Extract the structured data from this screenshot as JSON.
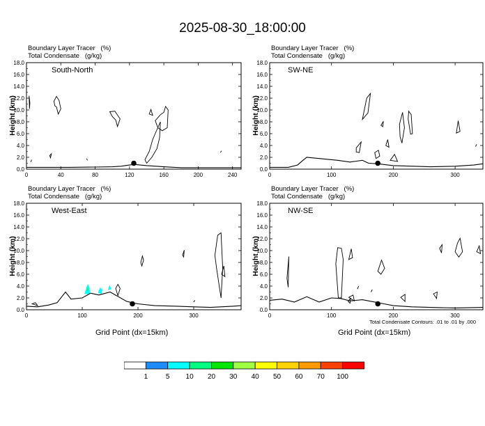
{
  "title": "2025-08-30_18:00:00",
  "panel_header": {
    "line1": "Boundary Layer Tracer   (%)",
    "line2": "Total Condensate   (g/kg)"
  },
  "xlabel": "Grid Point (dx=15km)",
  "ylabel": "Height (km)",
  "footnote": "Total Condensate Contours: .01 to .01 by .000",
  "colorbar": {
    "labels": [
      "1",
      "5",
      "10",
      "20",
      "30",
      "40",
      "50",
      "60",
      "70",
      "100"
    ],
    "colors": [
      "#ffffff",
      "#1e8cff",
      "#00ffff",
      "#00ff80",
      "#00e600",
      "#a0ff40",
      "#ffff00",
      "#ffd200",
      "#ff9b00",
      "#ff4000",
      "#ff0000"
    ]
  },
  "chart_data": [
    {
      "type": "contour",
      "name": "South-North",
      "xlim": [
        0,
        250
      ],
      "xticks": [
        0,
        40,
        80,
        120,
        160,
        200,
        240
      ],
      "ylim": [
        0,
        18
      ],
      "yticks": [
        "0.0",
        "2.0",
        "4.0",
        "6.0",
        "8.0",
        "10.0",
        "12.0",
        "14.0",
        "16.0",
        "18.0"
      ],
      "terrain": [
        [
          0,
          0.3
        ],
        [
          20,
          0.3
        ],
        [
          50,
          0.3
        ],
        [
          80,
          0.35
        ],
        [
          100,
          0.4
        ],
        [
          110,
          0.5
        ],
        [
          125,
          0.8
        ],
        [
          140,
          0.6
        ],
        [
          160,
          0.4
        ],
        [
          180,
          0.25
        ],
        [
          250,
          0.25
        ]
      ],
      "marker": [
        125,
        1.0
      ],
      "contours": [
        [
          [
            3,
            12.4
          ],
          [
            4,
            11.2
          ],
          [
            3.5,
            10.2
          ]
        ],
        [
          [
            32,
            11.5
          ],
          [
            35,
            12.3
          ],
          [
            38,
            11.6
          ],
          [
            40,
            10.2
          ],
          [
            37,
            9.3
          ],
          [
            35,
            10.5
          ],
          [
            33,
            10.7
          ]
        ],
        [
          [
            97,
            9.7
          ],
          [
            103,
            9.8
          ],
          [
            109,
            8.5
          ],
          [
            106,
            7.2
          ],
          [
            104,
            8.3
          ],
          [
            100,
            8.9
          ]
        ],
        [
          [
            140,
            1.0
          ],
          [
            146,
            2.0
          ],
          [
            152,
            3.5
          ],
          [
            155,
            5.3
          ],
          [
            156,
            8.0
          ],
          [
            152,
            6.7
          ],
          [
            147,
            5.0
          ],
          [
            143,
            3.0
          ],
          [
            138,
            1.6
          ]
        ],
        [
          [
            150,
            8.2
          ],
          [
            156,
            9.2
          ],
          [
            160,
            9.6
          ],
          [
            162,
            10.6
          ],
          [
            165,
            10.0
          ],
          [
            164,
            7.0
          ],
          [
            158,
            6.5
          ],
          [
            153,
            7.0
          ]
        ],
        [
          [
            143,
            9.3
          ],
          [
            145,
            10.1
          ],
          [
            147,
            9.1
          ]
        ],
        [
          [
            27,
            2.3
          ],
          [
            29,
            2.6
          ],
          [
            28,
            1.9
          ]
        ],
        [
          [
            70,
            1.8
          ],
          [
            71,
            1.5
          ]
        ],
        [
          [
            226,
            2.8
          ],
          [
            227,
            3.1
          ]
        ],
        [
          [
            5,
            1.2
          ],
          [
            6,
            1.6
          ]
        ]
      ]
    },
    {
      "type": "contour",
      "name": "SW-NE",
      "xlim": [
        0,
        345
      ],
      "xticks": [
        0,
        100,
        200,
        300
      ],
      "ylim": [
        0,
        18
      ],
      "yticks": [
        "0.0",
        "2.0",
        "4.0",
        "6.0",
        "8.0",
        "10.0",
        "12.0",
        "14.0",
        "16.0",
        "18.0"
      ],
      "terrain": [
        [
          0,
          0.3
        ],
        [
          30,
          0.3
        ],
        [
          45,
          0.7
        ],
        [
          55,
          1.6
        ],
        [
          60,
          2.0
        ],
        [
          80,
          1.8
        ],
        [
          110,
          1.5
        ],
        [
          130,
          1.2
        ],
        [
          150,
          1.5
        ],
        [
          160,
          1.0
        ],
        [
          175,
          0.9
        ],
        [
          200,
          0.6
        ],
        [
          260,
          0.4
        ],
        [
          300,
          0.5
        ],
        [
          330,
          0.7
        ],
        [
          345,
          0.9
        ]
      ],
      "marker": [
        175,
        1.0
      ],
      "contours": [
        [
          [
            150,
            8.4
          ],
          [
            157,
            12.0
          ],
          [
            163,
            12.8
          ],
          [
            159,
            9.5
          ]
        ],
        [
          [
            225,
            9.8
          ],
          [
            229,
            9.2
          ],
          [
            231,
            6.0
          ],
          [
            228,
            5.9
          ],
          [
            224,
            8.5
          ]
        ],
        [
          [
            210,
            7.6
          ],
          [
            215,
            9.6
          ],
          [
            218,
            7.0
          ],
          [
            214,
            4.4
          ],
          [
            211,
            5.5
          ]
        ],
        [
          [
            180,
            7.4
          ],
          [
            184,
            8.1
          ],
          [
            183,
            7.2
          ]
        ],
        [
          [
            302,
            6.1
          ],
          [
            305,
            8.2
          ],
          [
            308,
            6.4
          ]
        ],
        [
          [
            140,
            3.6
          ],
          [
            148,
            4.6
          ],
          [
            145,
            2.8
          ],
          [
            140,
            2.9
          ]
        ],
        [
          [
            170,
            2.8
          ],
          [
            176,
            3.2
          ],
          [
            178,
            2.2
          ],
          [
            172,
            1.8
          ]
        ],
        [
          [
            188,
            4.0
          ],
          [
            191,
            5.0
          ],
          [
            193,
            3.7
          ]
        ],
        [
          [
            195,
            1.5
          ],
          [
            202,
            2.5
          ],
          [
            207,
            1.3
          ]
        ],
        [
          [
            333,
            3.8
          ],
          [
            335,
            4.2
          ]
        ]
      ]
    },
    {
      "type": "contour",
      "name": "West-East",
      "xlim": [
        0,
        385
      ],
      "xticks": [
        0,
        100,
        200,
        300
      ],
      "ylim": [
        0,
        18
      ],
      "yticks": [
        "0.0",
        "2.0",
        "4.0",
        "6.0",
        "8.0",
        "10.0",
        "12.0",
        "14.0",
        "16.0",
        "18.0"
      ],
      "terrain": [
        [
          0,
          0.6
        ],
        [
          20,
          0.5
        ],
        [
          40,
          0.8
        ],
        [
          55,
          1.2
        ],
        [
          70,
          3.0
        ],
        [
          80,
          1.8
        ],
        [
          100,
          2.0
        ],
        [
          115,
          2.8
        ],
        [
          130,
          2.5
        ],
        [
          150,
          3.0
        ],
        [
          165,
          2.2
        ],
        [
          180,
          1.4
        ],
        [
          200,
          1.0
        ],
        [
          230,
          0.7
        ],
        [
          270,
          0.6
        ],
        [
          300,
          0.5
        ],
        [
          330,
          0.4
        ],
        [
          370,
          0.6
        ],
        [
          385,
          0.7
        ]
      ],
      "marker": [
        190,
        1.0
      ],
      "filled": [
        {
          "level": "5",
          "points": [
            [
              104,
              2.7
            ],
            [
              107,
              3.6
            ],
            [
              110,
              4.4
            ],
            [
              113,
              3.7
            ],
            [
              114,
              2.6
            ]
          ]
        },
        {
          "level": "10",
          "points": [
            [
              108,
              3.1
            ],
            [
              110,
              4.0
            ],
            [
              112,
              3.4
            ]
          ]
        },
        {
          "level": "5",
          "points": [
            [
              128,
              2.8
            ],
            [
              132,
              3.8
            ],
            [
              136,
              3.4
            ],
            [
              135,
              2.7
            ]
          ]
        },
        {
          "level": "5",
          "points": [
            [
              146,
              3.3
            ],
            [
              149,
              4.2
            ],
            [
              152,
              3.5
            ]
          ]
        }
      ],
      "contours": [
        [
          [
            205,
            8.0
          ],
          [
            208,
            9.1
          ],
          [
            210,
            8.4
          ],
          [
            207,
            7.4
          ]
        ],
        [
          [
            280,
            9.2
          ],
          [
            283,
            10.1
          ],
          [
            282,
            8.9
          ]
        ],
        [
          [
            338,
            9.2
          ],
          [
            343,
            12.6
          ],
          [
            349,
            13.0
          ],
          [
            352,
            7.0
          ],
          [
            349,
            2.0
          ],
          [
            345,
            4.5
          ],
          [
            341,
            7.0
          ]
        ],
        [
          [
            160,
            3.6
          ],
          [
            164,
            4.3
          ],
          [
            168,
            3.6
          ],
          [
            164,
            2.4
          ]
        ],
        [
          [
            350,
            6.0
          ],
          [
            354,
            7.4
          ],
          [
            356,
            5.6
          ]
        ],
        [
          [
            10,
            1.0
          ],
          [
            16,
            1.2
          ],
          [
            20,
            0.7
          ]
        ],
        [
          [
            300,
            1.3
          ],
          [
            302,
            1.6
          ]
        ]
      ]
    },
    {
      "type": "contour",
      "name": "NW-SE",
      "xlim": [
        0,
        345
      ],
      "xticks": [
        0,
        100,
        200,
        300
      ],
      "ylim": [
        0,
        18
      ],
      "yticks": [
        "0.0",
        "2.0",
        "4.0",
        "6.0",
        "8.0",
        "10.0",
        "12.0",
        "14.0",
        "16.0",
        "18.0"
      ],
      "terrain": [
        [
          0,
          1.6
        ],
        [
          20,
          1.8
        ],
        [
          40,
          1.3
        ],
        [
          60,
          2.2
        ],
        [
          80,
          1.3
        ],
        [
          100,
          2.0
        ],
        [
          115,
          1.9
        ],
        [
          130,
          1.5
        ],
        [
          150,
          1.7
        ],
        [
          170,
          1.3
        ],
        [
          185,
          1.0
        ],
        [
          200,
          0.7
        ],
        [
          230,
          0.5
        ],
        [
          260,
          0.4
        ],
        [
          300,
          0.3
        ],
        [
          345,
          0.4
        ]
      ],
      "marker": [
        175,
        1.0
      ],
      "contours": [
        [
          [
            107,
            7.8
          ],
          [
            110,
            10.5
          ],
          [
            116,
            10.4
          ],
          [
            119,
            8.5
          ],
          [
            116,
            2.0
          ],
          [
            111,
            2.0
          ]
        ],
        [
          [
            128,
            8.5
          ],
          [
            132,
            10.3
          ],
          [
            134,
            8.8
          ]
        ],
        [
          [
            175,
            6.5
          ],
          [
            181,
            8.4
          ],
          [
            186,
            7.0
          ],
          [
            180,
            6.0
          ]
        ],
        [
          [
            300,
            9.8
          ],
          [
            304,
            11.3
          ],
          [
            308,
            12.1
          ],
          [
            312,
            9.8
          ],
          [
            306,
            8.9
          ]
        ],
        [
          [
            275,
            10.4
          ],
          [
            279,
            11.0
          ],
          [
            278,
            9.6
          ]
        ],
        [
          [
            335,
            9.8
          ],
          [
            339,
            10.8
          ],
          [
            341,
            9.5
          ]
        ],
        [
          [
            265,
            2.7
          ],
          [
            271,
            3.0
          ],
          [
            270,
            1.9
          ]
        ],
        [
          [
            212,
            2.1
          ],
          [
            219,
            2.6
          ],
          [
            219,
            1.4
          ]
        ],
        [
          [
            28,
            5.3
          ],
          [
            31,
            9.0
          ],
          [
            30,
            3.8
          ]
        ],
        [
          [
            128,
            2.1
          ],
          [
            135,
            2.5
          ],
          [
            137,
            1.5
          ]
        ],
        [
          [
            142,
            3.5
          ],
          [
            144,
            4.0
          ]
        ],
        [
          [
            164,
            3.0
          ],
          [
            166,
            3.4
          ]
        ],
        [
          [
            127,
            1.4
          ],
          [
            131,
            2.0
          ],
          [
            130,
            1.1
          ]
        ]
      ]
    }
  ]
}
